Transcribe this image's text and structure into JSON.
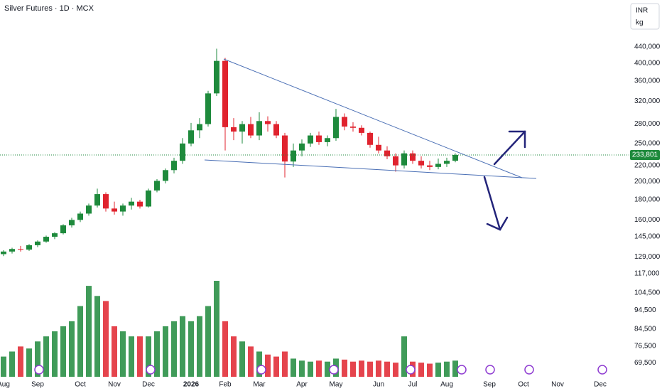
{
  "chart_data": {
    "type": "candlestick",
    "title": "Silver Futures · 1D · MCX",
    "currency": "INR",
    "unit": "kg",
    "log_scale": true,
    "grid": false,
    "up_color": "#1e8a3c",
    "down_color": "#e0232e",
    "categories": [
      "Aug",
      null,
      null,
      null,
      "Sep",
      null,
      null,
      null,
      null,
      "Oct",
      null,
      null,
      null,
      "Nov",
      null,
      null,
      null,
      "Dec",
      null,
      null,
      null,
      null,
      "2026",
      null,
      null,
      null,
      "Feb",
      null,
      null,
      null,
      "Mar",
      null,
      null,
      null,
      null,
      "Apr",
      null,
      null,
      null,
      "May",
      null,
      null,
      null,
      null,
      "Jun",
      null,
      null,
      null,
      "Jul",
      null,
      null,
      null,
      "Aug",
      null,
      null,
      null,
      null,
      "Sep",
      null,
      null,
      null,
      "Oct",
      null,
      null,
      null,
      "Nov",
      null,
      null,
      null,
      null,
      "Dec",
      null,
      null,
      null
    ],
    "open": [
      131000,
      133000,
      135000,
      134500,
      138000,
      141000,
      145000,
      148000,
      155000,
      160000,
      166000,
      174000,
      186000,
      171000,
      168000,
      174000,
      178000,
      173000,
      190000,
      201000,
      214000,
      226000,
      250000,
      270000,
      280000,
      335000,
      405000,
      275000,
      268000,
      280000,
      262000,
      285000,
      280000,
      262000,
      225000,
      240000,
      250000,
      262000,
      252000,
      258000,
      292000,
      276000,
      274000,
      266000,
      248000,
      240000,
      232000,
      220000,
      236000,
      226000,
      220000,
      218000,
      222000,
      226000,
      null,
      null,
      null,
      null,
      null,
      null,
      null,
      null,
      null,
      null,
      null,
      null,
      null,
      null,
      null,
      null,
      null,
      null,
      null,
      null
    ],
    "high": [
      134000,
      136000,
      137500,
      139000,
      142000,
      146000,
      149000,
      156000,
      162000,
      168000,
      176000,
      192000,
      188000,
      178000,
      176000,
      182000,
      180000,
      192000,
      203000,
      216000,
      230000,
      258000,
      282000,
      290000,
      340000,
      435000,
      412000,
      290000,
      285000,
      292000,
      300000,
      293000,
      285000,
      266000,
      250000,
      256000,
      266000,
      268000,
      262000,
      306000,
      298000,
      283000,
      278000,
      268000,
      260000,
      246000,
      236000,
      240000,
      240000,
      232000,
      226000,
      229000,
      230000,
      236000,
      null,
      null,
      null,
      null,
      null,
      null,
      null,
      null,
      null,
      null,
      null,
      null,
      null,
      null,
      null,
      null,
      null,
      null,
      null,
      null
    ],
    "low": [
      129500,
      131500,
      133000,
      133500,
      136500,
      140000,
      143000,
      147000,
      153000,
      158000,
      164000,
      172000,
      168000,
      165000,
      164000,
      170000,
      171000,
      172000,
      188000,
      198000,
      210000,
      222000,
      246000,
      258000,
      276000,
      330000,
      240000,
      255000,
      250000,
      258000,
      255000,
      268000,
      258000,
      205000,
      218000,
      232000,
      245000,
      248000,
      246000,
      254000,
      270000,
      268000,
      262000,
      244000,
      236000,
      228000,
      212000,
      216000,
      222000,
      216000,
      214000,
      215000,
      218000,
      224000,
      null,
      null,
      null,
      null,
      null,
      null,
      null,
      null,
      null,
      null,
      null,
      null,
      null,
      null,
      null,
      null,
      null,
      null,
      null,
      null
    ],
    "close": [
      133000,
      135000,
      134500,
      138000,
      141000,
      145000,
      148000,
      155000,
      160000,
      166000,
      174000,
      186000,
      171000,
      168000,
      174000,
      178000,
      173000,
      190000,
      201000,
      214000,
      226000,
      250000,
      270000,
      280000,
      335000,
      405000,
      275000,
      268000,
      280000,
      262000,
      285000,
      280000,
      262000,
      225000,
      240000,
      250000,
      262000,
      252000,
      258000,
      292000,
      276000,
      274000,
      266000,
      248000,
      240000,
      232000,
      220000,
      236000,
      226000,
      220000,
      218000,
      222000,
      226000,
      233801,
      null,
      null,
      null,
      null,
      null,
      null,
      null,
      null,
      null,
      null,
      null,
      null,
      null,
      null,
      null,
      null,
      null,
      null,
      null,
      null
    ],
    "volume": [
      20,
      25,
      30,
      28,
      35,
      40,
      45,
      50,
      55,
      70,
      90,
      80,
      75,
      50,
      45,
      40,
      40,
      40,
      45,
      50,
      55,
      60,
      55,
      60,
      70,
      95,
      55,
      40,
      35,
      30,
      25,
      22,
      20,
      25,
      18,
      16,
      15,
      16,
      15,
      18,
      17,
      15,
      16,
      15,
      16,
      15,
      14,
      40,
      15,
      14,
      13,
      14,
      15,
      16,
      null,
      null,
      null,
      null,
      null,
      null,
      null,
      null,
      null,
      null,
      null,
      null,
      null,
      null,
      null,
      null,
      null,
      null,
      null,
      null
    ],
    "last_price": {
      "value": 233801,
      "label": "233,801"
    },
    "ylim": [
      64000,
      578000
    ],
    "yticks": [
      {
        "value": 440000,
        "label": "440,000"
      },
      {
        "value": 400000,
        "label": "400,000"
      },
      {
        "value": 360000,
        "label": "360,000"
      },
      {
        "value": 320000,
        "label": "320,000"
      },
      {
        "value": 280000,
        "label": "280,000"
      },
      {
        "value": 250000,
        "label": "250,000"
      },
      {
        "value": 220000,
        "label": "220,000"
      },
      {
        "value": 200000,
        "label": "200,000"
      },
      {
        "value": 180000,
        "label": "180,000"
      },
      {
        "value": 160000,
        "label": "160,000"
      },
      {
        "value": 145000,
        "label": "145,000"
      },
      {
        "value": 129000,
        "label": "129,000"
      },
      {
        "value": 117000,
        "label": "117,000"
      },
      {
        "value": 104500,
        "label": "104,500"
      },
      {
        "value": 94500,
        "label": "94,500"
      },
      {
        "value": 84500,
        "label": "84,500"
      },
      {
        "value": 76500,
        "label": "76,500"
      },
      {
        "value": 69500,
        "label": "69,500"
      }
    ]
  }
}
